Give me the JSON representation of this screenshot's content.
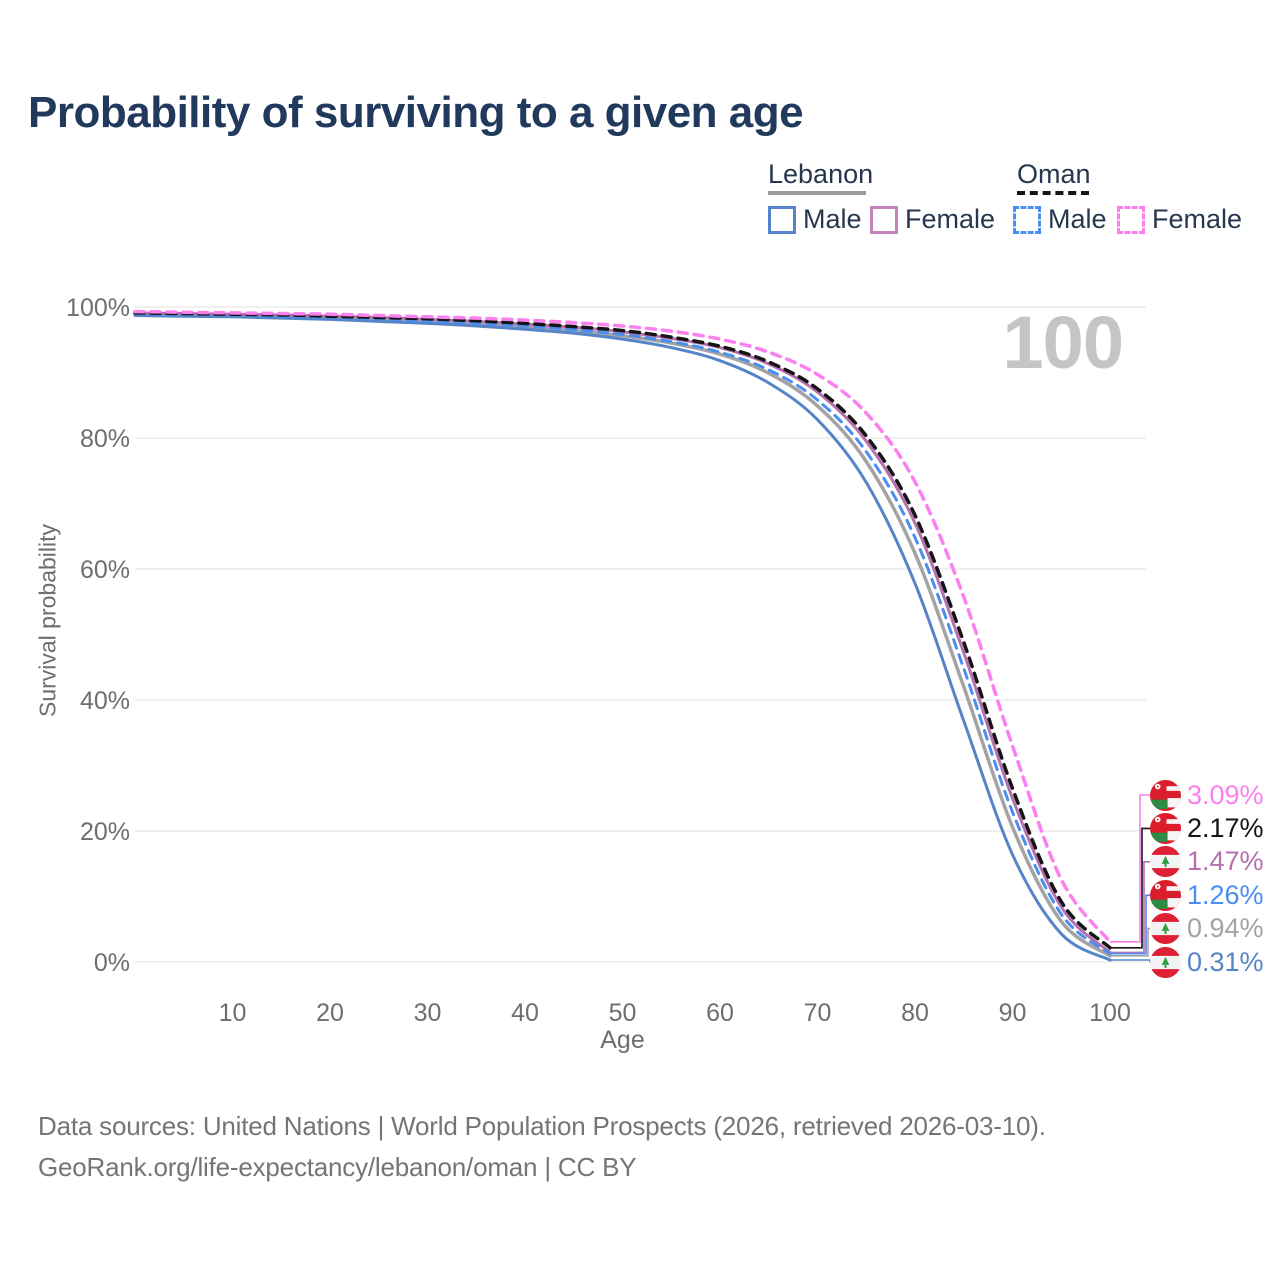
{
  "header": {
    "title": "Probability of surviving to a given age"
  },
  "watermark": "100",
  "legend": {
    "groups": [
      {
        "label": "Lebanon",
        "line_style": "solid",
        "items": [
          {
            "label": "Male"
          },
          {
            "label": "Female"
          }
        ]
      },
      {
        "label": "Oman",
        "line_style": "dashed",
        "items": [
          {
            "label": "Male"
          },
          {
            "label": "Female"
          }
        ]
      }
    ]
  },
  "chart_data": {
    "type": "line",
    "title": "Probability of surviving to a given age",
    "xlabel": "Age",
    "ylabel": "Survival probability",
    "xlim": [
      0,
      100
    ],
    "ylim": [
      0,
      100
    ],
    "grid": "horizontal",
    "legend_position": "top-right",
    "x_ticks": [
      10,
      20,
      30,
      40,
      50,
      60,
      70,
      80,
      90,
      100
    ],
    "y_ticks": [
      {
        "value": 0,
        "label": "0%"
      },
      {
        "value": 20,
        "label": "20%"
      },
      {
        "value": 40,
        "label": "40%"
      },
      {
        "value": 60,
        "label": "60%"
      },
      {
        "value": 80,
        "label": "80%"
      },
      {
        "value": 100,
        "label": "100%"
      }
    ],
    "x": [
      0,
      5,
      10,
      15,
      20,
      25,
      30,
      35,
      40,
      45,
      50,
      55,
      60,
      65,
      70,
      75,
      80,
      85,
      90,
      95,
      100
    ],
    "series": [
      {
        "name": "Lebanon Both sexes",
        "country": "lebanon",
        "color": "#a3a3a3",
        "dash": false,
        "width": 3.5,
        "values": [
          98.9,
          98.8,
          98.7,
          98.5,
          98.3,
          98.1,
          97.8,
          97.4,
          97.0,
          96.4,
          95.6,
          94.5,
          92.8,
          89.9,
          84.9,
          76.4,
          62.4,
          42.0,
          20.6,
          6.2,
          0.94
        ]
      },
      {
        "name": "Lebanon Male",
        "country": "lebanon",
        "color": "#5585c8",
        "dash": false,
        "width": 3,
        "values": [
          98.7,
          98.6,
          98.5,
          98.3,
          98.1,
          97.8,
          97.5,
          97.1,
          96.6,
          96.0,
          95.1,
          93.8,
          91.8,
          88.4,
          82.8,
          73.2,
          57.8,
          36.8,
          16.4,
          4.3,
          0.31
        ]
      },
      {
        "name": "Lebanon Female",
        "country": "lebanon",
        "color": "#b570ae",
        "dash": false,
        "width": 3,
        "values": [
          99.1,
          99.0,
          98.9,
          98.8,
          98.6,
          98.4,
          98.1,
          97.8,
          97.4,
          96.9,
          96.2,
          95.2,
          93.8,
          91.3,
          87.0,
          79.5,
          67.0,
          47.2,
          25.0,
          8.4,
          1.47
        ]
      },
      {
        "name": "Oman Male",
        "country": "oman",
        "color": "#4b8ef2",
        "dash": true,
        "width": 3,
        "values": [
          99.0,
          98.9,
          98.8,
          98.6,
          98.4,
          98.2,
          97.9,
          97.5,
          97.1,
          96.5,
          95.8,
          94.7,
          93.1,
          90.4,
          85.8,
          77.9,
          64.8,
          44.8,
          22.9,
          7.3,
          1.26
        ]
      },
      {
        "name": "Oman Both sexes",
        "country": "oman",
        "color": "#151515",
        "dash": true,
        "width": 3.5,
        "values": [
          99.1,
          99.0,
          98.9,
          98.8,
          98.6,
          98.4,
          98.2,
          97.9,
          97.5,
          97.0,
          96.4,
          95.4,
          94.0,
          91.6,
          87.5,
          80.3,
          68.2,
          48.8,
          26.5,
          9.2,
          2.17
        ]
      },
      {
        "name": "Oman Female",
        "country": "oman",
        "color": "#fc7ff0",
        "dash": true,
        "width": 3.5,
        "values": [
          99.3,
          99.2,
          99.1,
          99.0,
          98.9,
          98.7,
          98.5,
          98.3,
          98.0,
          97.6,
          97.1,
          96.3,
          95.1,
          93.1,
          89.7,
          83.8,
          73.3,
          55.7,
          33.0,
          12.6,
          3.09
        ]
      }
    ],
    "end_labels": [
      {
        "series": "Oman Female",
        "value": "3.09%",
        "color": "#fc7ff0",
        "flag": "oman"
      },
      {
        "series": "Oman Both sexes",
        "value": "2.17%",
        "color": "#151515",
        "flag": "oman"
      },
      {
        "series": "Lebanon Female",
        "value": "1.47%",
        "color": "#b570ae",
        "flag": "lebanon"
      },
      {
        "series": "Oman Male",
        "value": "1.26%",
        "color": "#4b8ef2",
        "flag": "oman"
      },
      {
        "series": "Lebanon Both sexes",
        "value": "0.94%",
        "color": "#a3a3a3",
        "flag": "lebanon"
      },
      {
        "series": "Lebanon Male",
        "value": "0.31%",
        "color": "#5585c8",
        "flag": "lebanon"
      }
    ]
  },
  "footer": {
    "line1": "Data sources: United Nations | World Population Prospects (2026, retrieved 2026-03-10).",
    "line2": "GeoRank.org/life-expectancy/lebanon/oman | CC BY"
  }
}
